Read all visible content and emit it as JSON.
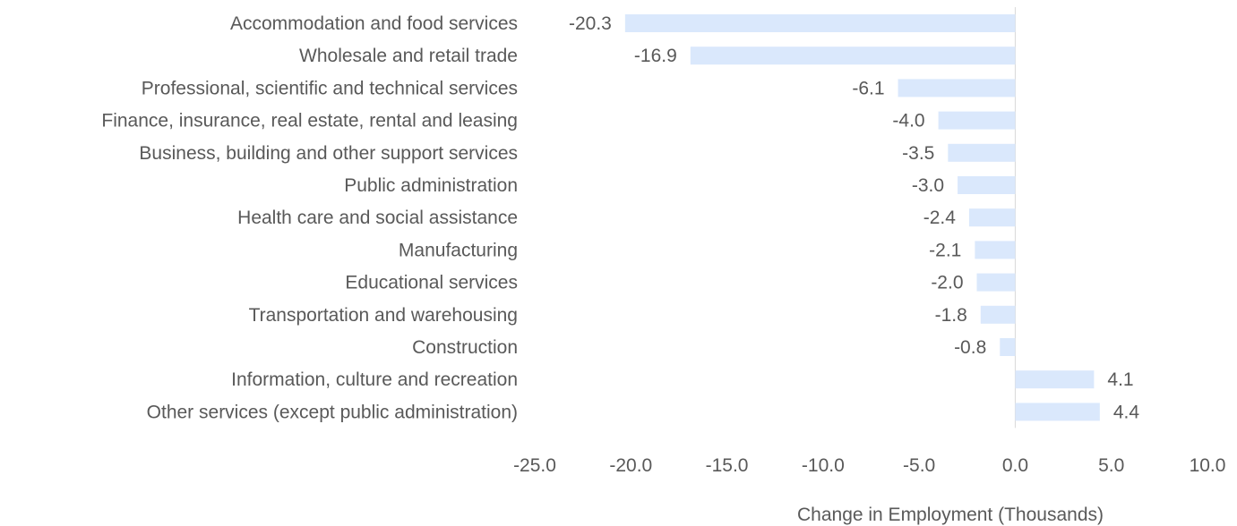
{
  "chart_data": {
    "type": "bar",
    "orientation": "horizontal",
    "title": "",
    "xlabel": "Change in Employment (Thousands)",
    "ylabel": "",
    "xlim": [
      -25.0,
      10.0
    ],
    "ticks": [
      -25.0,
      -20.0,
      -15.0,
      -10.0,
      -5.0,
      0.0,
      5.0,
      10.0
    ],
    "tick_labels": [
      "-25.0",
      "-20.0",
      "-15.0",
      "-10.0",
      "-5.0",
      "0.0",
      "5.0",
      "10.0"
    ],
    "categories": [
      "Accommodation and food services",
      "Wholesale and retail trade",
      "Professional, scientific and technical services",
      "Finance, insurance, real estate, rental and leasing",
      "Business, building and other support services",
      "Public administration",
      "Health care and social assistance",
      "Manufacturing",
      "Educational services",
      "Transportation and warehousing",
      "Construction",
      "Information, culture and recreation",
      "Other services (except public administration)"
    ],
    "values": [
      -20.3,
      -16.9,
      -6.1,
      -4.0,
      -3.5,
      -3.0,
      -2.4,
      -2.1,
      -2.0,
      -1.8,
      -0.8,
      4.1,
      4.4
    ],
    "value_labels": [
      "-20.3",
      "-16.9",
      "-6.1",
      "-4.0",
      "-3.5",
      "-3.0",
      "-2.4",
      "-2.1",
      "-2.0",
      "-1.8",
      "-0.8",
      "4.1",
      "4.4"
    ],
    "grid": false,
    "legend": "none",
    "colors": {
      "bar": "#dae8fc",
      "text": "#595959",
      "zero_line": "#d9d9d9"
    }
  }
}
